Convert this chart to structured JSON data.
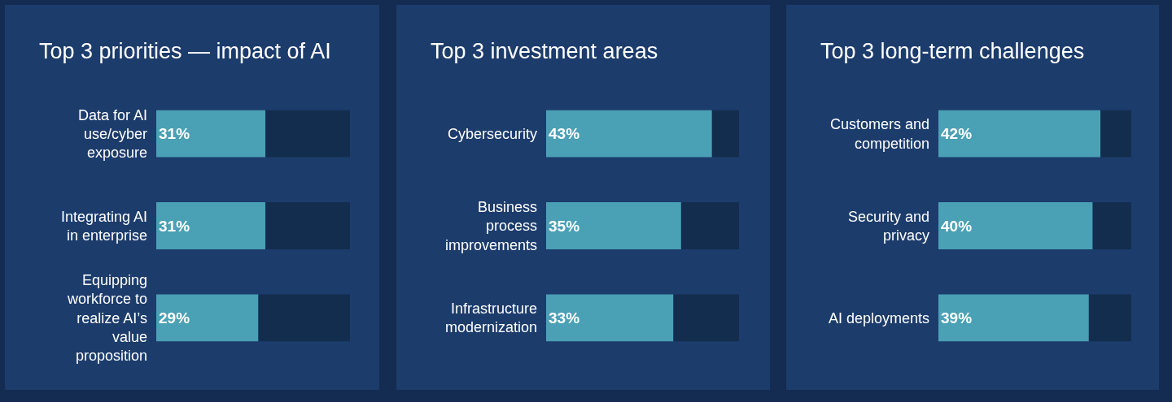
{
  "chart_data": [
    {
      "type": "bar",
      "orientation": "horizontal",
      "stacked": true,
      "title": "Top 3 priorities — impact of AI",
      "categories": [
        "Data for AI use/cyber exposure",
        "Integrating AI in enterprise",
        "Equipping workforce to realize AI’s value proposition"
      ],
      "series": [
        {
          "color": "#4aa0b5",
          "values": [
            31,
            31,
            29
          ],
          "value_labels": [
            "31%",
            "31%",
            "29%"
          ]
        },
        {
          "color": "#132d4e",
          "values": [
            24,
            24,
            26
          ]
        }
      ],
      "xlim": [
        0,
        55
      ],
      "tick_labels": "y"
    },
    {
      "type": "bar",
      "orientation": "horizontal",
      "stacked": true,
      "title": "Top 3 investment areas",
      "categories": [
        "Cybersecurity",
        "Business process improvements",
        "Infrastructure modernization"
      ],
      "series": [
        {
          "color": "#4aa0b5",
          "values": [
            43,
            35,
            33
          ],
          "value_labels": [
            "43%",
            "35%",
            "33%"
          ]
        },
        {
          "color": "#132d4e",
          "values": [
            7,
            15,
            17
          ]
        }
      ],
      "xlim": [
        0,
        50
      ],
      "tick_labels": "y"
    },
    {
      "type": "bar",
      "orientation": "horizontal",
      "stacked": true,
      "title": "Top 3 long-term challenges",
      "categories": [
        "Customers and competition",
        "Security and privacy",
        "AI deployments"
      ],
      "series": [
        {
          "color": "#4aa0b5",
          "values": [
            42,
            40,
            39
          ],
          "value_labels": [
            "42%",
            "40%",
            "39%"
          ]
        },
        {
          "color": "#132d4e",
          "values": [
            8,
            10,
            11
          ]
        }
      ],
      "xlim": [
        0,
        50
      ],
      "tick_labels": "y"
    }
  ]
}
